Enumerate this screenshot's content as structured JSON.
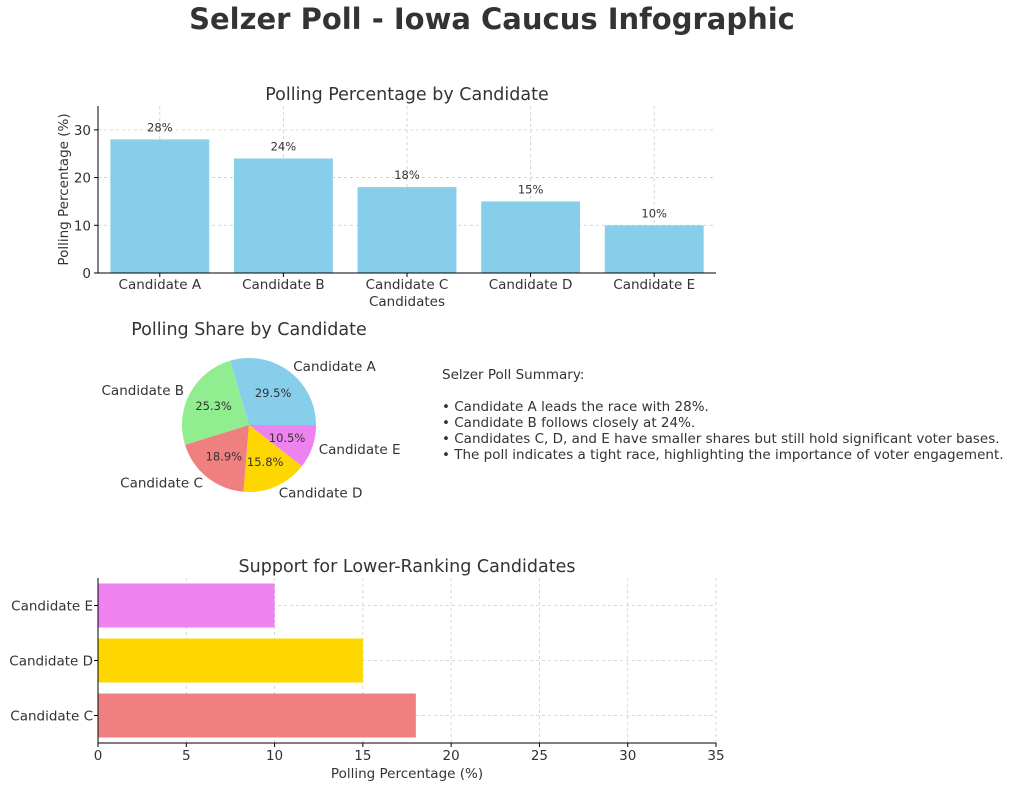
{
  "title": "Selzer Poll - Iowa Caucus Infographic",
  "summary": {
    "heading": "Selzer Poll Summary:",
    "lines": [
      "• Candidate A leads the race with 28%.",
      "• Candidate B follows closely at 24%.",
      "• Candidates C, D, and E have smaller shares but still hold significant voter bases.",
      "• The poll indicates a tight race, highlighting the importance of voter engagement."
    ]
  },
  "chart_data": [
    {
      "type": "bar",
      "title": "Polling Percentage by Candidate",
      "xlabel": "Candidates",
      "ylabel": "Polling Percentage (%)",
      "categories": [
        "Candidate A",
        "Candidate B",
        "Candidate C",
        "Candidate D",
        "Candidate E"
      ],
      "values": [
        28,
        24,
        18,
        15,
        10
      ],
      "data_labels": [
        "28%",
        "24%",
        "18%",
        "15%",
        "10%"
      ],
      "ylim": [
        0,
        35
      ],
      "yticks": [
        0,
        10,
        20,
        30
      ],
      "grid": true,
      "color": "#87CEEB"
    },
    {
      "type": "pie",
      "title": "Polling Share by Candidate",
      "labels": [
        "Candidate A",
        "Candidate B",
        "Candidate C",
        "Candidate D",
        "Candidate E"
      ],
      "values": [
        29.5,
        25.3,
        18.9,
        15.8,
        10.5
      ],
      "pct_labels": [
        "29.5%",
        "25.3%",
        "18.9%",
        "15.8%",
        "10.5%"
      ],
      "colors": [
        "#87CEEB",
        "#90EE90",
        "#F08080",
        "#FFD700",
        "#EE82EE"
      ],
      "start_angle_deg": 0
    },
    {
      "type": "bar",
      "orientation": "horizontal",
      "title": "Support for Lower-Ranking Candidates",
      "xlabel": "Polling Percentage (%)",
      "ylabel": "",
      "categories": [
        "Candidate C",
        "Candidate D",
        "Candidate E"
      ],
      "values": [
        18,
        15,
        10
      ],
      "colors": [
        "#F08080",
        "#FFD700",
        "#EE82EE"
      ],
      "xlim": [
        0,
        35
      ],
      "xticks": [
        0,
        5,
        10,
        15,
        20,
        25,
        30,
        35
      ],
      "grid": true
    }
  ]
}
